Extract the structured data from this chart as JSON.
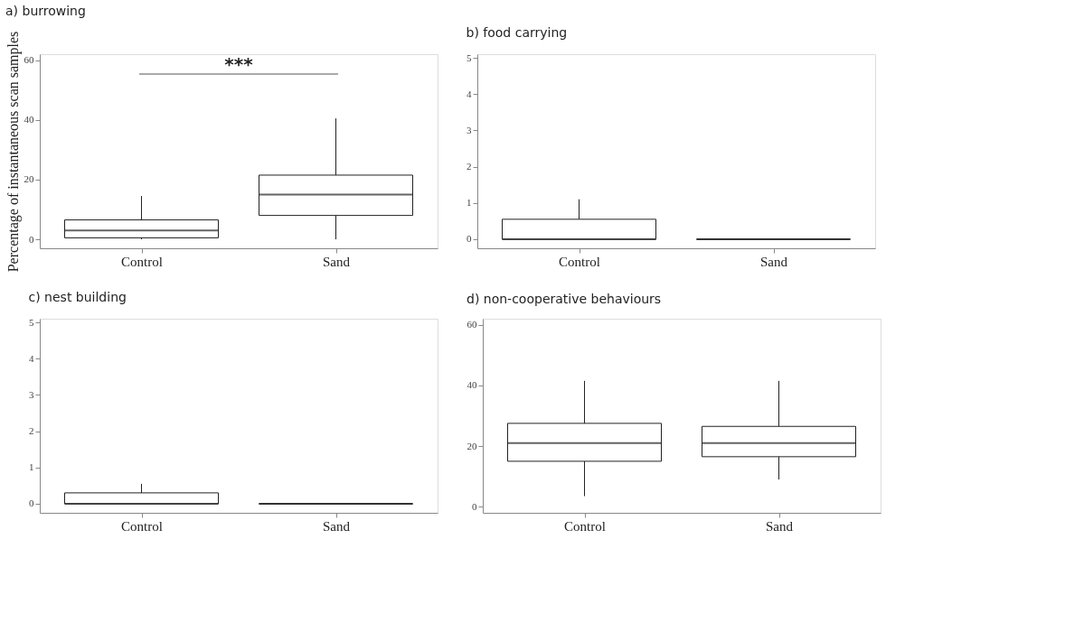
{
  "chart_data": [
    {
      "type": "box",
      "title": "a) burrowing",
      "ylabel": "Percentage of instantaneous scan samples",
      "categories": [
        "Control",
        "Sand"
      ],
      "ylim": [
        -3,
        62
      ],
      "yticks": [
        0,
        20,
        40,
        60
      ],
      "grid": false,
      "annotations": [
        "***"
      ],
      "boxes": [
        {
          "low": 0,
          "q1": 0.5,
          "median": 3,
          "q3": 6.5,
          "high": 14.5
        },
        {
          "low": 0,
          "q1": 8,
          "median": 15,
          "q3": 21.5,
          "high": 40.5
        }
      ]
    },
    {
      "type": "box",
      "title": "b) food carrying",
      "categories": [
        "Control",
        "Sand"
      ],
      "ylim": [
        -0.25,
        5.1
      ],
      "yticks": [
        0,
        1,
        2,
        3,
        4,
        5
      ],
      "grid": false,
      "boxes": [
        {
          "low": 0,
          "q1": 0,
          "median": 0,
          "q3": 0.55,
          "high": 1.1
        },
        {
          "low": 0,
          "q1": 0,
          "median": 0,
          "q3": 0,
          "high": 0
        }
      ]
    },
    {
      "type": "box",
      "title": "c) nest building",
      "categories": [
        "Control",
        "Sand"
      ],
      "ylim": [
        -0.25,
        5.1
      ],
      "yticks": [
        0,
        1,
        2,
        3,
        4,
        5
      ],
      "grid": false,
      "boxes": [
        {
          "low": 0,
          "q1": 0,
          "median": 0,
          "q3": 0.3,
          "high": 0.55
        },
        {
          "low": 0,
          "q1": 0,
          "median": 0,
          "q3": 0,
          "high": 0
        }
      ]
    },
    {
      "type": "box",
      "title": "d) non-cooperative behaviours",
      "categories": [
        "Control",
        "Sand"
      ],
      "ylim": [
        -2,
        62
      ],
      "yticks": [
        0,
        20,
        40,
        60
      ],
      "grid": false,
      "boxes": [
        {
          "low": 3.5,
          "q1": 15,
          "median": 21,
          "q3": 27.5,
          "high": 41.5
        },
        {
          "low": 9,
          "q1": 16.5,
          "median": 21,
          "q3": 26.5,
          "high": 41.5
        }
      ]
    }
  ]
}
